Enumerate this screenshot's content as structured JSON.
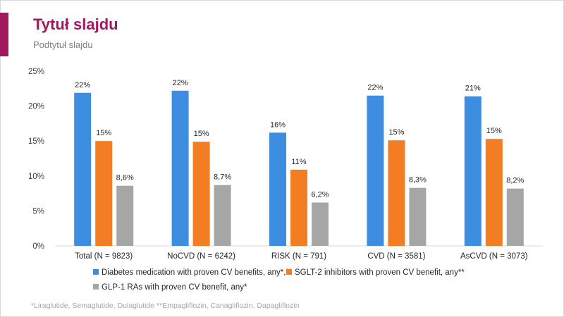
{
  "slide": {
    "title": "Tytuł slajdu",
    "subtitle": "Podtytuł slajdu",
    "footnote": "*Liraglutide, Semaglutide, Dulaglutide  **Empagliflozin, Canagliflozin, Dapagliflozin"
  },
  "chart_data": {
    "type": "bar",
    "title": "",
    "xlabel": "",
    "ylabel": "",
    "ylim": [
      0,
      25
    ],
    "yticks": [
      0,
      5,
      10,
      15,
      20,
      25
    ],
    "ytick_labels": [
      "0%",
      "5%",
      "10%",
      "15%",
      "20%",
      "25%"
    ],
    "grid": false,
    "legend_position": "bottom",
    "categories": [
      "Total (N = 9823)",
      "NoCVD (N = 6242)",
      "RISK (N = 791)",
      "CVD (N = 3581)",
      "AsCVD (N = 3073)"
    ],
    "series": [
      {
        "name": "Diabetes medication with proven CV benefits, any*,**",
        "color": "#3d8ee0",
        "values": [
          21.9,
          22.2,
          16.2,
          21.5,
          21.4
        ],
        "labels": [
          "22%",
          "22%",
          "16%",
          "22%",
          "21%"
        ]
      },
      {
        "name": "SGLT-2 inhibitors with proven CV benefit, any**",
        "color": "#f27d22",
        "values": [
          15.0,
          14.9,
          10.9,
          15.1,
          15.3
        ],
        "labels": [
          "15%",
          "15%",
          "11%",
          "15%",
          "15%"
        ]
      },
      {
        "name": "GLP-1 RAs with proven CV benefit, any*",
        "color": "#a6a6a6",
        "values": [
          8.6,
          8.7,
          6.2,
          8.3,
          8.2
        ],
        "labels": [
          "8,6%",
          "8,7%",
          "6,2%",
          "8,3%",
          "8,2%"
        ]
      }
    ]
  }
}
